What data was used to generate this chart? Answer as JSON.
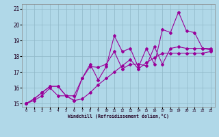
{
  "x": [
    0,
    1,
    2,
    3,
    4,
    5,
    6,
    7,
    8,
    9,
    10,
    11,
    12,
    13,
    14,
    15,
    16,
    17,
    18,
    19,
    20,
    21,
    22,
    23
  ],
  "y_top": [
    15.0,
    15.3,
    15.7,
    16.1,
    16.1,
    15.5,
    15.5,
    16.6,
    17.5,
    16.5,
    17.35,
    19.3,
    18.3,
    18.5,
    17.3,
    18.5,
    17.5,
    19.7,
    19.5,
    20.8,
    19.6,
    19.5,
    18.5,
    18.5
  ],
  "y_mid": [
    15.0,
    15.3,
    15.7,
    16.1,
    16.1,
    15.5,
    15.2,
    16.6,
    17.35,
    17.3,
    17.5,
    18.3,
    17.2,
    17.5,
    17.5,
    17.4,
    18.6,
    17.5,
    18.5,
    18.6,
    18.5,
    18.5,
    18.5,
    18.4
  ],
  "y_bot": [
    15.0,
    15.2,
    15.5,
    16.0,
    15.5,
    15.5,
    15.2,
    15.3,
    15.7,
    16.2,
    16.6,
    17.0,
    17.4,
    17.8,
    17.2,
    17.6,
    17.9,
    18.2,
    18.2,
    18.2,
    18.2,
    18.2,
    18.2,
    18.3
  ],
  "line_color": "#990099",
  "bg_color": "#b0d8e8",
  "grid_color": "#90b8c8",
  "xlabel": "Windchill (Refroidissement éolien,°C)",
  "xlim": [
    -0.5,
    23.5
  ],
  "ylim": [
    14.8,
    21.3
  ],
  "yticks": [
    15,
    16,
    17,
    18,
    19,
    20,
    21
  ],
  "xticks": [
    0,
    1,
    2,
    3,
    4,
    5,
    6,
    7,
    8,
    9,
    10,
    11,
    12,
    13,
    14,
    15,
    16,
    17,
    18,
    19,
    20,
    21,
    22,
    23
  ]
}
